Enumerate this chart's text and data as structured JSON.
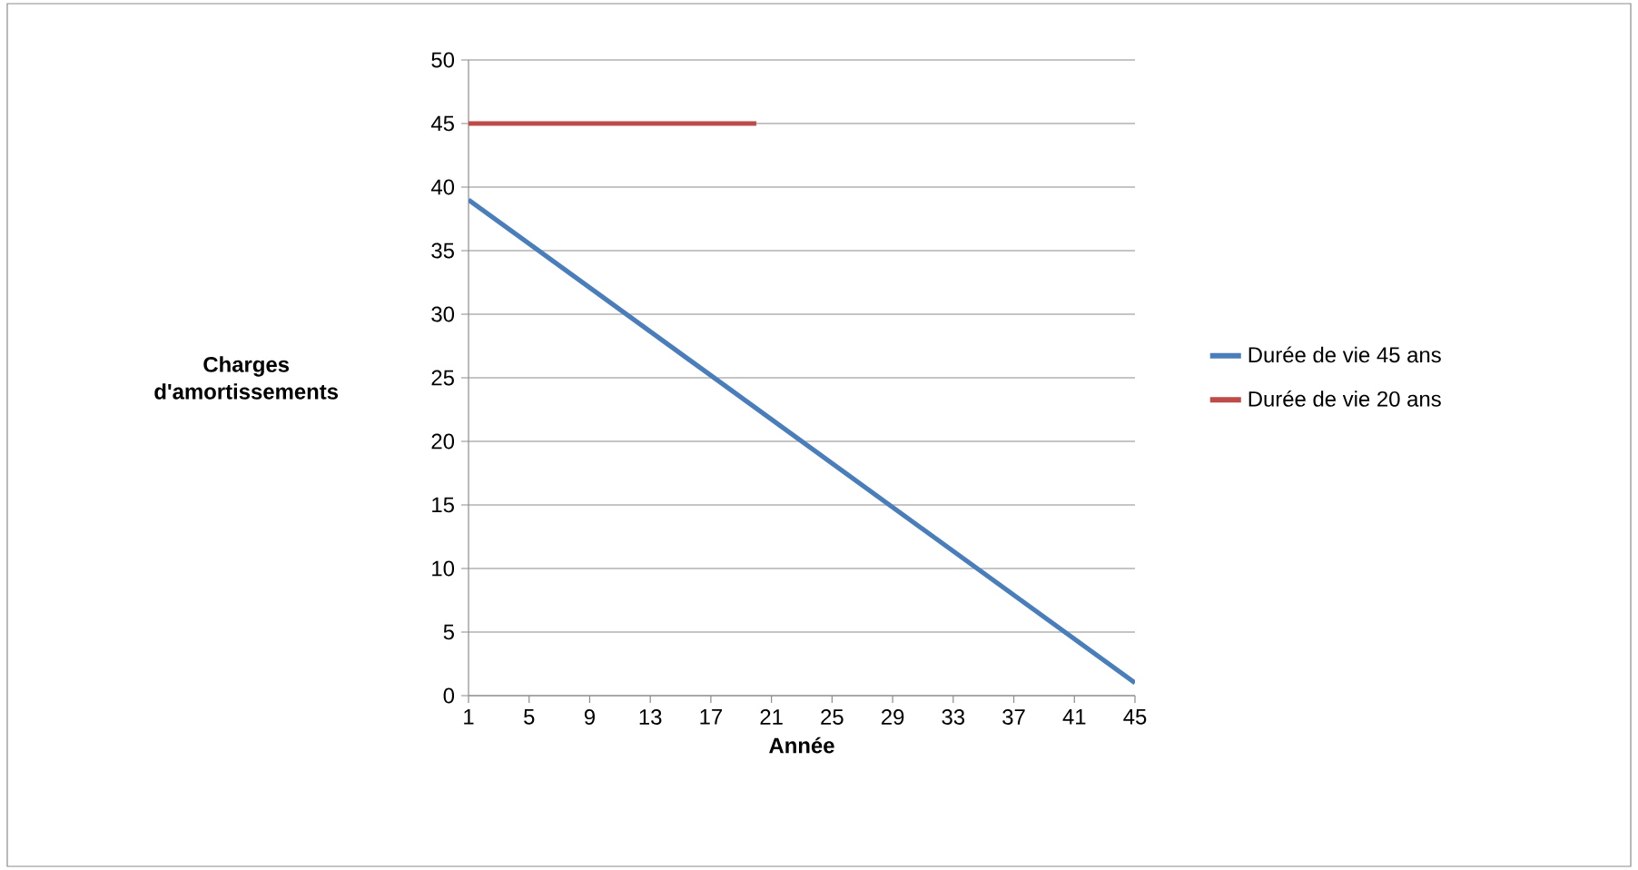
{
  "chart_data": {
    "type": "line",
    "xlabel": "Année",
    "ylabel": "Charges d'amortissements",
    "xlim": [
      1,
      45
    ],
    "xticks": [
      1,
      5,
      9,
      13,
      17,
      21,
      25,
      29,
      33,
      37,
      41,
      45
    ],
    "ylim": [
      0,
      50
    ],
    "yticks": [
      0,
      5,
      10,
      15,
      20,
      25,
      30,
      35,
      40,
      45,
      50
    ],
    "grid": "y",
    "legend": "right",
    "marker": "none",
    "line_style": "solid",
    "series": [
      {
        "name": "Durée de vie 45 ans",
        "color": "#4a7ebb",
        "x": [
          1,
          45
        ],
        "values": [
          39,
          1
        ]
      },
      {
        "name": "Durée de vie 20 ans",
        "color": "#be4b48",
        "x": [
          1,
          20
        ],
        "values": [
          45,
          45
        ]
      }
    ]
  }
}
